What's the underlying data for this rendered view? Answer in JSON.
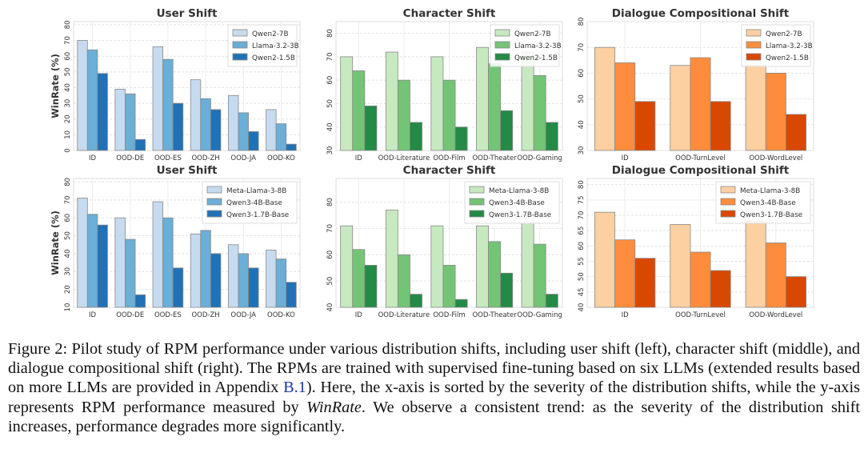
{
  "chart_data": [
    {
      "type": "bar",
      "title": "User Shift",
      "ylabel": "WinRate (%)",
      "ylim": [
        0,
        82
      ],
      "yticks": [
        0,
        10,
        20,
        30,
        40,
        50,
        60,
        70,
        80
      ],
      "categories": [
        "ID",
        "OOD-DE",
        "OOD-ES",
        "OOD-ZH",
        "OOD-JA",
        "OOD-KO"
      ],
      "series": [
        {
          "name": "Qwen2-7B",
          "values": [
            70,
            39,
            66,
            45,
            35,
            26
          ],
          "color": "#c6dbef"
        },
        {
          "name": "Llama-3.2-3B",
          "values": [
            64,
            36,
            58,
            33,
            24,
            17
          ],
          "color": "#6baed6"
        },
        {
          "name": "Qwen2-1.5B",
          "values": [
            49,
            7,
            30,
            26,
            12,
            4
          ],
          "color": "#2171b5"
        }
      ],
      "legend": "top-right",
      "grid": true
    },
    {
      "type": "bar",
      "title": "Character Shift",
      "ylabel": "",
      "ylim": [
        30,
        85
      ],
      "yticks": [
        30,
        40,
        50,
        60,
        70,
        80
      ],
      "categories": [
        "ID",
        "OOD-Literature",
        "OOD-Film",
        "OOD-Theater",
        "OOD-Gaming"
      ],
      "series": [
        {
          "name": "Qwen2-7B",
          "values": [
            70,
            72,
            70,
            74,
            72
          ],
          "color": "#c7e9c0"
        },
        {
          "name": "Llama-3.2-3B",
          "values": [
            64,
            60,
            60,
            67,
            62
          ],
          "color": "#74c476"
        },
        {
          "name": "Qwen2-1.5B",
          "values": [
            49,
            42,
            40,
            47,
            42
          ],
          "color": "#238b45"
        }
      ],
      "legend": "top-right",
      "grid": true
    },
    {
      "type": "bar",
      "title": "Dialogue Compositional Shift",
      "ylabel": "",
      "ylim": [
        30,
        80
      ],
      "yticks": [
        30,
        40,
        50,
        60,
        70,
        80
      ],
      "categories": [
        "ID",
        "OOD-TurnLevel",
        "OOD-WordLevel"
      ],
      "series": [
        {
          "name": "Qwen2-7B",
          "values": [
            70,
            63,
            63
          ],
          "color": "#fdd0a2"
        },
        {
          "name": "Llama-3.2-3B",
          "values": [
            64,
            66,
            60
          ],
          "color": "#fd8d3c"
        },
        {
          "name": "Qwen2-1.5B",
          "values": [
            49,
            49,
            44
          ],
          "color": "#d94801"
        }
      ],
      "legend": "top-right",
      "grid": true
    },
    {
      "type": "bar",
      "title": "User Shift",
      "ylabel": "WinRate (%)",
      "ylim": [
        10,
        82
      ],
      "yticks": [
        10,
        20,
        30,
        40,
        50,
        60,
        70,
        80
      ],
      "categories": [
        "ID",
        "OOD-DE",
        "OOD-ES",
        "OOD-ZH",
        "OOD-JA",
        "OOD-KO"
      ],
      "series": [
        {
          "name": "Meta-Llama-3-8B",
          "values": [
            71,
            60,
            69,
            51,
            45,
            42
          ],
          "color": "#c6dbef"
        },
        {
          "name": "Qwen3-4B-Base",
          "values": [
            62,
            48,
            60,
            53,
            40,
            37
          ],
          "color": "#6baed6"
        },
        {
          "name": "Qwen3-1.7B-Base",
          "values": [
            56,
            17,
            32,
            40,
            32,
            24
          ],
          "color": "#2171b5"
        }
      ],
      "legend": "top-right",
      "grid": true
    },
    {
      "type": "bar",
      "title": "Character Shift",
      "ylabel": "",
      "ylim": [
        40,
        89
      ],
      "yticks": [
        40,
        50,
        60,
        70,
        80
      ],
      "categories": [
        "ID",
        "OOD-Literature",
        "OOD-Film",
        "OOD-Theater",
        "OOD-Gaming"
      ],
      "series": [
        {
          "name": "Meta-Llama-3-8B",
          "values": [
            71,
            77,
            71,
            71,
            72
          ],
          "color": "#c7e9c0"
        },
        {
          "name": "Qwen3-4B-Base",
          "values": [
            62,
            60,
            56,
            65,
            64
          ],
          "color": "#74c476"
        },
        {
          "name": "Qwen3-1.7B-Base",
          "values": [
            56,
            45,
            43,
            53,
            45
          ],
          "color": "#238b45"
        }
      ],
      "legend": "top-right",
      "grid": true
    },
    {
      "type": "bar",
      "title": "Dialogue Compositional Shift",
      "ylabel": "",
      "ylim": [
        40,
        82
      ],
      "yticks": [
        40,
        45,
        50,
        55,
        60,
        65,
        70,
        75,
        80
      ],
      "categories": [
        "ID",
        "OOD-TurnLevel",
        "OOD-WordLevel"
      ],
      "series": [
        {
          "name": "Meta-Llama-3-8B",
          "values": [
            71,
            67,
            68
          ],
          "color": "#fdd0a2"
        },
        {
          "name": "Qwen3-4B-Base",
          "values": [
            62,
            58,
            61
          ],
          "color": "#fd8d3c"
        },
        {
          "name": "Qwen3-1.7B-Base",
          "values": [
            56,
            52,
            50
          ],
          "color": "#d94801"
        }
      ],
      "legend": "top-right",
      "grid": true
    }
  ],
  "caption": {
    "label": "Figure 2:",
    "text1": " Pilot study of RPM performance under various distribution shifts, including user shift (left), character shift (middle), and dialogue compositional shift (right). The RPMs are trained with supervised fine-tuning based on six LLMs (extended results based on more LLMs are provided in Appendix ",
    "link": "B.1",
    "text2": "). Here, the x-axis is sorted by the severity of the distribution shifts, while the y-axis represents RPM performance measured by ",
    "metric": "WinRate",
    "text3": ". We observe a consistent trend: as the severity of the distribution shift increases, performance degrades more significantly."
  }
}
